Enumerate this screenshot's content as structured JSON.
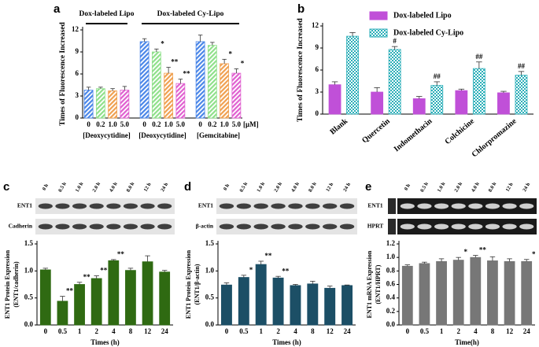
{
  "chart_data": [
    {
      "type": "bar",
      "panel": "a",
      "ylabel": [
        "Times of Fluorescence Increased"
      ],
      "headers": [
        "Dox-labeled Lipo",
        "Dox-labeled Cy-Lipo"
      ],
      "categories": [
        "0",
        "0.2",
        "1.0",
        "5.0",
        "0",
        "0.2",
        "1.0",
        "5.0",
        "0",
        "0.2",
        "1.0",
        "5.0"
      ],
      "group_labels": [
        "[Deoxycytidine]",
        "[Deoxycytidine]",
        "[Gemcitabine]"
      ],
      "unit_label": "[μM]",
      "values": [
        3.8,
        4.0,
        3.7,
        3.8,
        10.4,
        9.0,
        6.1,
        4.7,
        10.4,
        9.9,
        7.4,
        6.1
      ],
      "errors": [
        0.4,
        0.2,
        0.3,
        0.5,
        0.4,
        0.4,
        0.8,
        0.6,
        0.9,
        0.4,
        0.6,
        0.6
      ],
      "significance": [
        null,
        null,
        null,
        null,
        null,
        "*",
        "**",
        "**",
        null,
        null,
        "*",
        "*"
      ],
      "colors": [
        "#4a86e8",
        "#8fe08a",
        "#f0a050",
        "#e060d0"
      ],
      "hatch": true,
      "ylim": [
        0,
        12
      ],
      "yticks": [
        0,
        3,
        6,
        9,
        12
      ]
    },
    {
      "type": "bar",
      "panel": "b",
      "ylabel": [
        "Times of Fluorescence Increased"
      ],
      "categories": [
        "Blank",
        "Quercetin",
        "Indomethacin",
        "Colchicine",
        "Chlorpromazine"
      ],
      "series": [
        {
          "name": "Dox-labeled Lipo",
          "color": "#c050d8",
          "hatch": false,
          "values": [
            4.0,
            3.0,
            2.1,
            3.2,
            2.9
          ],
          "errors": [
            0.4,
            0.6,
            0.3,
            0.2,
            0.2
          ]
        },
        {
          "name": "Dox-labeled Cy-Lipo",
          "color": "#2aaeb8",
          "hatch": true,
          "values": [
            10.6,
            8.8,
            3.9,
            6.2,
            5.3
          ],
          "errors": [
            0.5,
            0.4,
            0.5,
            0.9,
            0.5
          ],
          "significance": [
            null,
            "#",
            "##",
            "##",
            "##"
          ]
        }
      ],
      "ylim": [
        0,
        12
      ],
      "yticks": [
        0,
        3,
        6,
        9,
        12
      ]
    },
    {
      "type": "bar",
      "panel": "c",
      "ylabel": [
        "ENT1 Protein Expression",
        "(ENT1/cadherin)"
      ],
      "xlabel": "Times (h)",
      "blot": {
        "lanes": [
          "0 h",
          "0.5 h",
          "1.0 h",
          "2.0 h",
          "4.0 h",
          "8.0 h",
          "12 h",
          "24 h"
        ],
        "rows": [
          "ENT1",
          "Cadherin"
        ]
      },
      "categories": [
        "0",
        "0.5",
        "1",
        "2",
        "4",
        "8",
        "12",
        "24"
      ],
      "values": [
        1.02,
        0.44,
        0.75,
        0.86,
        1.19,
        1.01,
        1.17,
        0.98
      ],
      "errors": [
        0.03,
        0.09,
        0.04,
        0.05,
        0.02,
        0.04,
        0.11,
        0.03
      ],
      "significance": [
        null,
        "**",
        "**",
        "**",
        "**",
        null,
        null,
        null
      ],
      "color": "#2f6a12",
      "ylim": [
        0,
        1.5
      ],
      "yticks": [
        {
          "value": 0,
          "label": "0.0"
        },
        0.5,
        {
          "value": 1,
          "label": "1.0"
        },
        1.5
      ]
    },
    {
      "type": "bar",
      "panel": "d",
      "ylabel": [
        "ENT1 Protein Expression",
        "(ENT1/β-actin)"
      ],
      "xlabel": "Times (h)",
      "blot": {
        "lanes": [
          "0 h",
          "0.5 h",
          "1.0 h",
          "2.0 h",
          "4.0 h",
          "8.0 h",
          "12 h",
          "24 h"
        ],
        "rows": [
          "ENT1",
          "β-actin"
        ]
      },
      "categories": [
        "0",
        "0.5",
        "1",
        "2",
        "4",
        "8",
        "12",
        "24"
      ],
      "values": [
        0.74,
        0.88,
        1.12,
        0.87,
        0.73,
        0.76,
        0.68,
        0.73
      ],
      "errors": [
        0.04,
        0.04,
        0.06,
        0.03,
        0.02,
        0.05,
        0.04,
        0.01
      ],
      "significance": [
        null,
        "*",
        "**",
        "**",
        null,
        null,
        null,
        null
      ],
      "color": "#1c4f66",
      "ylim": [
        0,
        1.5
      ],
      "yticks": [
        {
          "value": 0,
          "label": "0.0"
        },
        0.5,
        {
          "value": 1,
          "label": "1.0"
        },
        1.5
      ]
    },
    {
      "type": "bar",
      "panel": "e",
      "ylabel": [
        "ENT1 mRNA Expression",
        "(ENT1/HPRT)"
      ],
      "xlabel": "Time(h)",
      "blot": {
        "lanes": [
          "0 h",
          "0.5 h",
          "1.0 h",
          "2.0 h",
          "4.0 h",
          "8.0 h",
          "12 h",
          "24 h"
        ],
        "rows": [
          "ENT1",
          "HPRT"
        ],
        "gel": true
      },
      "categories": [
        "0",
        "0.5",
        "1",
        "2",
        "4",
        "8",
        "12",
        "24"
      ],
      "values": [
        0.87,
        0.91,
        0.94,
        0.96,
        1.0,
        0.95,
        0.94,
        0.94
      ],
      "errors": [
        0.02,
        0.02,
        0.04,
        0.04,
        0.03,
        0.06,
        0.04,
        0.03
      ],
      "significance": [
        null,
        null,
        null,
        "*",
        "**",
        null,
        null,
        "*"
      ],
      "color": "#777777",
      "ylim": [
        0,
        1.2
      ],
      "yticks": [
        {
          "value": 0,
          "label": "0.0"
        },
        0.2,
        0.4,
        0.6,
        0.8,
        {
          "value": 1,
          "label": "1.0"
        },
        1.2
      ]
    }
  ]
}
